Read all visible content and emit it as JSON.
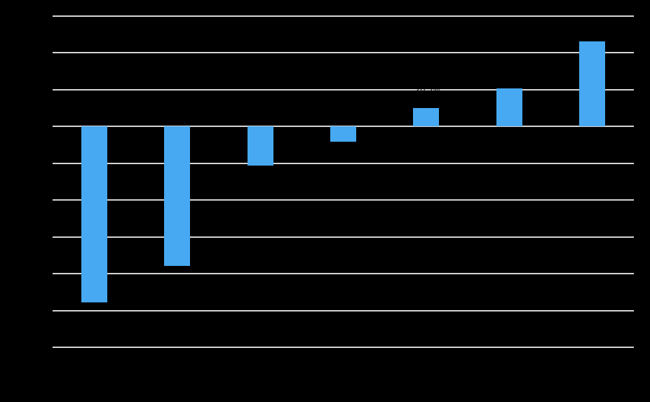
{
  "chart_data": {
    "type": "bar",
    "title": "",
    "categories": [
      "",
      "",
      "",
      "",
      "",
      "",
      ""
    ],
    "values": [
      -47.8,
      -37.9,
      -10.7,
      -4.1,
      5.0,
      10.2,
      23.0
    ],
    "xlabel": "",
    "ylabel": "",
    "ylim": [
      -60,
      30
    ],
    "ytick_step": 10,
    "grid": "horizontal",
    "legend": "none",
    "tick_labels_visible": false,
    "annotation": {
      "text": "20.5%",
      "x_center": 610,
      "y_center": 127,
      "color": "#000000"
    }
  },
  "colors": {
    "background": "#000000",
    "bar": "#47A9F1",
    "gridline": "#D4D4D4"
  }
}
